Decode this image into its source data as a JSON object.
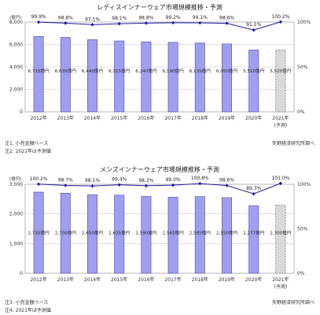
{
  "colors": {
    "bar_fill": "#9f9ff0",
    "bar_stroke": "#4a4ab0",
    "forecast_fill": "#d9d9d9",
    "line": "#1a1aa0",
    "grid": "#c8c8c8"
  },
  "chart_data": [
    {
      "type": "bar",
      "title": "レディスインナーウェア市場規模推移・予測",
      "y_unit": "(億円)",
      "categories": [
        "2012年",
        "2013年",
        "2014年",
        "2015年",
        "2016年",
        "2017年",
        "2018年",
        "2019年",
        "2020年",
        "2021年"
      ],
      "forecast_label": "(予測)",
      "values": [
        6715,
        6635,
        6440,
        6315,
        6240,
        6190,
        6135,
        6050,
        5510,
        5520
      ],
      "value_labels": [
        "6,715億円",
        "6,635億円",
        "6,440億円",
        "6,315億円",
        "6,240億円",
        "6,190億円",
        "6,135億円",
        "6,050億円",
        "5,510億円",
        "5,520億円"
      ],
      "yoy": [
        99.9,
        98.8,
        97.1,
        98.1,
        98.8,
        99.2,
        99.1,
        98.6,
        91.1,
        100.2
      ],
      "yoy_labels": [
        "99.9%",
        "98.8%",
        "97.1%",
        "98.1%",
        "98.8%",
        "99.2%",
        "99.1%",
        "98.6%",
        "91.1%",
        "100.2%"
      ],
      "y_ticks": [
        "0",
        "2,000",
        "4,000",
        "6,000",
        "8,000"
      ],
      "ylim": [
        0,
        8000
      ],
      "y2_ticks": [
        "0%",
        "50%",
        "100%"
      ],
      "y2lim": [
        0,
        100
      ],
      "forecast_index": 9,
      "notes": [
        "注1. 小売金額ベース",
        "注2. 2021年は予測値"
      ],
      "source": "矢野経済研究所調べ"
    },
    {
      "type": "bar",
      "title": "メンズインナーウェア市場規模推移・予測",
      "y_unit": "(億円)",
      "categories": [
        "2012年",
        "2013年",
        "2014年",
        "2015年",
        "2016年",
        "2017年",
        "2018年",
        "2019年",
        "2020年",
        "2021年"
      ],
      "forecast_label": "(予測)",
      "values": [
        2735,
        2700,
        2650,
        2635,
        2590,
        2565,
        2585,
        2550,
        2277,
        2300
      ],
      "value_labels": [
        "2,735億円",
        "2,700億円",
        "2,650億円",
        "2,635億円",
        "2,590億円",
        "2,565億円",
        "2,585億円",
        "2,550億円",
        "2,277億円",
        "2,300億円"
      ],
      "yoy": [
        100.2,
        98.7,
        98.1,
        99.4,
        98.3,
        99.0,
        100.8,
        98.6,
        89.3,
        101.0
      ],
      "yoy_labels": [
        "100.2%",
        "98.7%",
        "98.1%",
        "99.4%",
        "98.3%",
        "99.0%",
        "100.8%",
        "98.6%",
        "89.3%",
        "101.0%"
      ],
      "y_ticks": [
        "0",
        "1,000",
        "2,000",
        "3,000"
      ],
      "ylim": [
        0,
        3000
      ],
      "y2_ticks": [
        "0%",
        "50%",
        "100%"
      ],
      "y2lim": [
        0,
        100
      ],
      "forecast_index": 9,
      "notes": [
        "注3. 小売金額ベース",
        "注4. 2021年は予測値"
      ],
      "source": "矢野経済研究所調べ"
    }
  ]
}
